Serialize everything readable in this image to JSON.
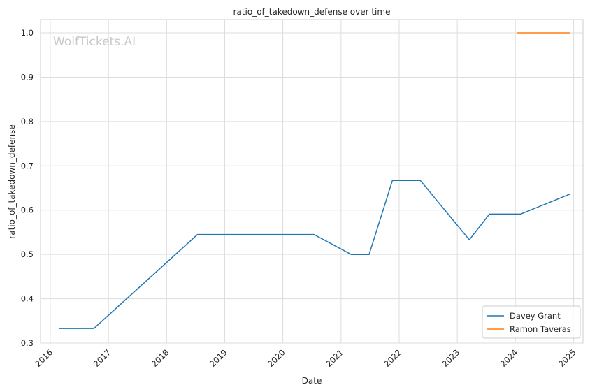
{
  "chart_data": {
    "type": "line",
    "title": "ratio_of_takedown_defense over time",
    "xlabel": "Date",
    "ylabel": "ratio_of_takedown_defense",
    "watermark": "WolfTickets.AI",
    "x_ticks": [
      "2016",
      "2017",
      "2018",
      "2019",
      "2020",
      "2021",
      "2022",
      "2023",
      "2024",
      "2025"
    ],
    "y_ticks": [
      "0.3",
      "0.4",
      "0.5",
      "0.6",
      "0.7",
      "0.8",
      "0.9",
      "1.0"
    ],
    "xlim": [
      "2015-11-01",
      "2025-03-01"
    ],
    "ylim": [
      0.3,
      1.03
    ],
    "grid": true,
    "legend_position": "bottom-right",
    "series": [
      {
        "name": "Davey Grant",
        "color": "#1f77b4",
        "points": [
          {
            "x": "2016-02-27",
            "y": 0.333
          },
          {
            "x": "2016-10-01",
            "y": 0.333
          },
          {
            "x": "2018-07-14",
            "y": 0.545
          },
          {
            "x": "2020-07-15",
            "y": 0.545
          },
          {
            "x": "2021-03-06",
            "y": 0.5
          },
          {
            "x": "2021-06-26",
            "y": 0.5
          },
          {
            "x": "2021-11-20",
            "y": 0.667
          },
          {
            "x": "2022-05-14",
            "y": 0.667
          },
          {
            "x": "2023-03-18",
            "y": 0.533
          },
          {
            "x": "2023-07-22",
            "y": 0.591
          },
          {
            "x": "2024-02-03",
            "y": 0.591
          },
          {
            "x": "2024-12-07",
            "y": 0.636
          }
        ]
      },
      {
        "name": "Ramon Taveras",
        "color": "#ff7f0e",
        "points": [
          {
            "x": "2024-01-13",
            "y": 1.0
          },
          {
            "x": "2024-12-07",
            "y": 1.0
          }
        ]
      }
    ]
  }
}
